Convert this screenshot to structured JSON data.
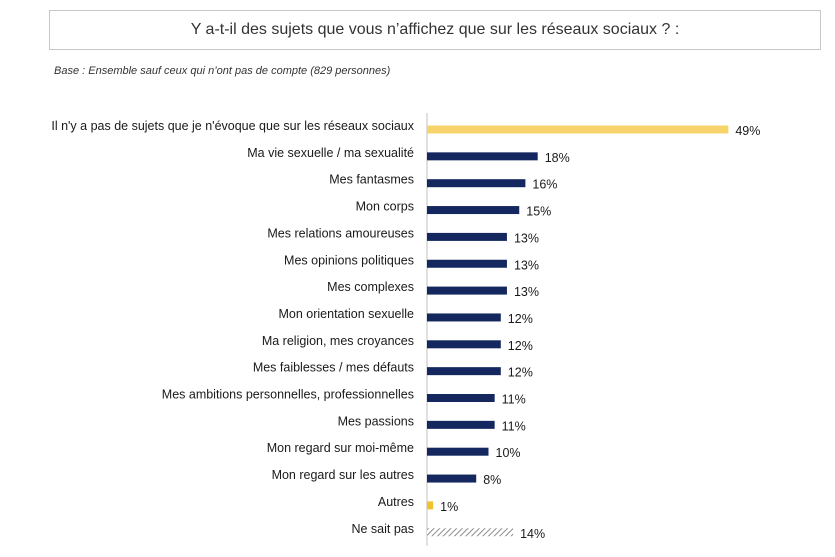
{
  "title": "Y a-t-il des sujets que vous n’affichez que sur les réseaux sociaux ? :",
  "base_note": "Base : Ensemble sauf ceux qui n’ont pas de compte (829 personnes)",
  "colors": {
    "highlight": "#f7d46b",
    "accent_small": "#f2c12e",
    "main": "#14285f",
    "hatch": "#8c8c8c",
    "axis": "#c0c0c0"
  },
  "chart_data": {
    "type": "bar",
    "orientation": "horizontal",
    "title": "Y a-t-il des sujets que vous n’affichez que sur les réseaux sociaux ? :",
    "xlabel": "",
    "ylabel": "",
    "xlim": [
      0,
      100
    ],
    "value_suffix": "%",
    "categories": [
      "Il n'y a pas de sujets que je n'évoque que sur les réseaux sociaux",
      "Ma vie sexuelle / ma sexualité",
      "Mes fantasmes",
      "Mon corps",
      "Mes relations amoureuses",
      "Mes opinions politiques",
      "Mes complexes",
      "Mon orientation sexuelle",
      "Ma religion, mes croyances",
      "Mes faiblesses / mes défauts",
      "Mes ambitions personnelles, professionnelles",
      "Mes passions",
      "Mon regard sur moi-même",
      "Mon regard sur les autres",
      "Autres",
      "Ne sait pas"
    ],
    "values": [
      49,
      18,
      16,
      15,
      13,
      13,
      13,
      12,
      12,
      12,
      11,
      11,
      10,
      8,
      1,
      14
    ],
    "bar_styles": [
      "highlight",
      "main",
      "main",
      "main",
      "main",
      "main",
      "main",
      "main",
      "main",
      "main",
      "main",
      "main",
      "main",
      "main",
      "accent_small",
      "hatch"
    ]
  }
}
